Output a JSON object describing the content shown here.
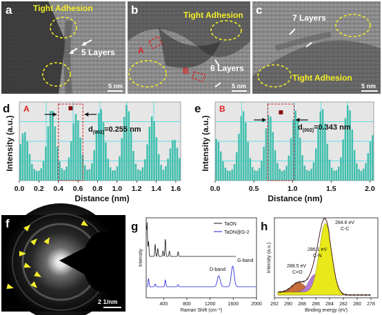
{
  "tem": {
    "a": {
      "letter": "a",
      "adhesion": "Tight Adhesion",
      "layers": "5 Layers",
      "scale": "5 nm"
    },
    "b": {
      "letter": "b",
      "adhesion": "Tight Adhesion",
      "layers": "6 Layers",
      "scale": "5 nm",
      "markA": "A",
      "markB": "B"
    },
    "c": {
      "letter": "c",
      "adhesion": "Tight Adhesion",
      "layers": "7 Layers",
      "scale": "5 nm"
    }
  },
  "profile_d": {
    "letter": "d",
    "tag": "A",
    "annotation_main": "d",
    "annotation_sub": "(002)",
    "annotation_value": "=0.255 nm"
  },
  "profile_e": {
    "letter": "e",
    "tag": "B",
    "annotation_main": "d",
    "annotation_sub": "(002)",
    "annotation_value": "=0.343 nm"
  },
  "saed": {
    "letter": "f",
    "scale": "2 1/nm"
  },
  "raman": {
    "letter": "g",
    "legend1": "TaON",
    "legend2": "TaON@G-2",
    "dband": "D-band",
    "gband": "G-band"
  },
  "xps": {
    "letter": "h",
    "peak1": "284.6 eV",
    "peak1b": "C-C",
    "peak2": "286.1 eV",
    "peak2b": "C-N",
    "peak3": "288.5 eV",
    "peak3b": "C=O"
  },
  "colors": {
    "teal": "#3fbfae",
    "panel_bg": "#e6e6e6",
    "grid": "#33d8e8",
    "yellow": "#f4ef2a",
    "red": "#cc1111",
    "blue": "#1a1ae0"
  },
  "chart_data": [
    {
      "type": "area",
      "panel": "d",
      "xlabel": "Distance (nm)",
      "ylabel": "Intensity (a.u.)",
      "xticks": [
        "0.0",
        "0.2",
        "0.4",
        "0.6",
        "0.8",
        "1.0",
        "1.2",
        "1.4",
        "1.6"
      ],
      "xlim": [
        0,
        1.65
      ],
      "peaks_x": [
        0.05,
        0.33,
        0.58,
        0.83,
        1.1,
        1.36,
        1.58
      ],
      "peak_heights": [
        0.65,
        0.95,
        0.88,
        0.95,
        1.0,
        0.85,
        0.55
      ],
      "marker_x": [
        0.4,
        0.65
      ]
    },
    {
      "type": "area",
      "panel": "e",
      "xlabel": "Distance (nm)",
      "ylabel": "Intensity (a.u.)",
      "xticks": [
        "0.0",
        "0.5",
        "1.0",
        "1.5",
        "2.0"
      ],
      "xlim": [
        0,
        2.05
      ],
      "peaks_x": [
        0.02,
        0.36,
        0.7,
        1.04,
        1.38,
        1.72,
        2.04
      ],
      "peak_heights": [
        0.55,
        0.92,
        0.88,
        0.92,
        0.96,
        1.0,
        0.6
      ],
      "marker_x": [
        0.68,
        1.02
      ]
    },
    {
      "type": "line",
      "panel": "g",
      "xlabel": "Raman Shift (cm⁻¹)",
      "ylabel": "Intensity",
      "xticks": [
        "400",
        "800",
        "1200",
        "1600",
        "2000"
      ],
      "xlim": [
        100,
        2000
      ],
      "series": [
        {
          "name": "TaON",
          "color": "#111111"
        },
        {
          "name": "TaON@G-2",
          "color": "#1a1ae0"
        }
      ]
    },
    {
      "type": "area",
      "panel": "h",
      "xlabel": "Binding energy (eV)",
      "ylabel": "Intensity (a.u.)",
      "xticks": [
        "292",
        "290",
        "288",
        "286",
        "284",
        "282",
        "280",
        "278"
      ],
      "xlim": [
        292,
        277
      ],
      "components": [
        {
          "center": 284.6,
          "color": "#e8e81a"
        },
        {
          "center": 286.1,
          "color": "#b47bd6"
        },
        {
          "center": 288.5,
          "color": "#c86e3a"
        }
      ]
    }
  ]
}
